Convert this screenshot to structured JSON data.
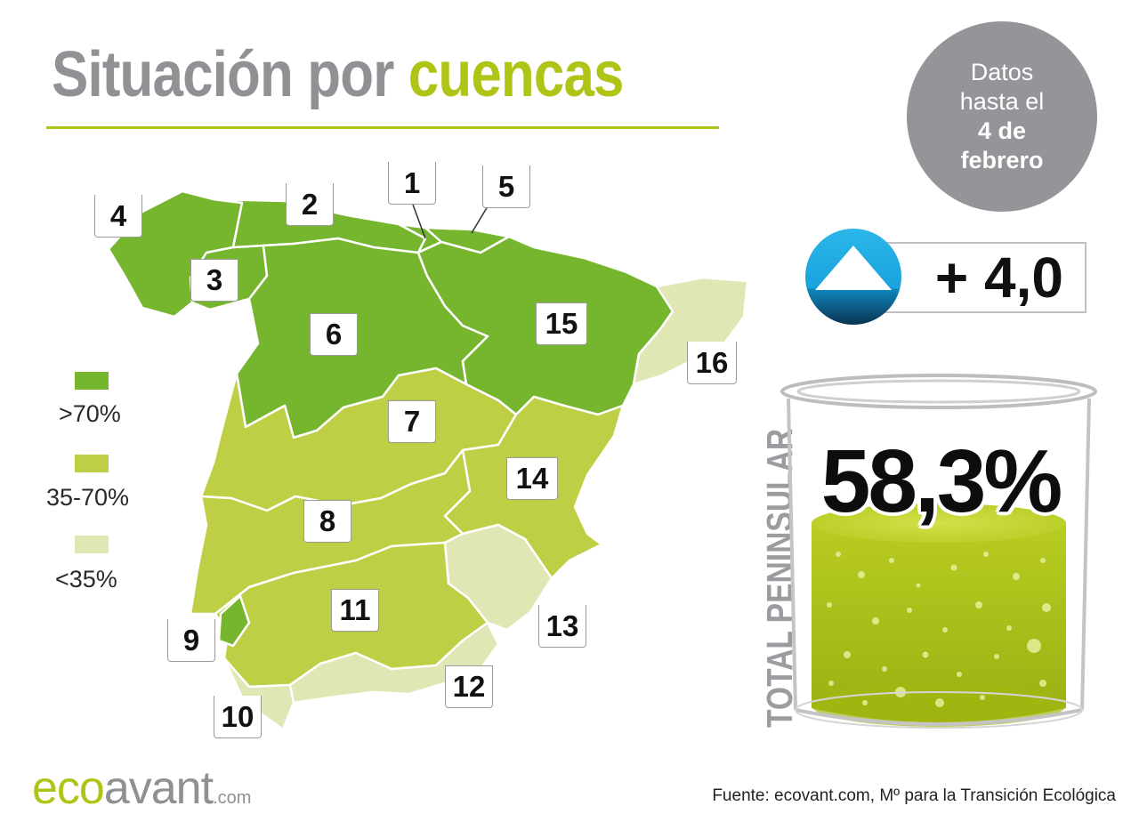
{
  "title": {
    "part1": "Situación por",
    "part2": "cuencas"
  },
  "date_note": {
    "line1": "Datos",
    "line2": "hasta el",
    "line3": "4 de",
    "line4": "febrero"
  },
  "weekly_change": {
    "icon": "up-triangle-icon",
    "value": "+ 4,0"
  },
  "total": {
    "label": "TOTAL PENINSULAR",
    "value": "58,3%",
    "fill_fraction": 0.583
  },
  "legend": [
    {
      "label": ">70%",
      "color": "#76b52e"
    },
    {
      "label": "35-70%",
      "color": "#bfcf45"
    },
    {
      "label": "<35%",
      "color": "#e0e7b4"
    }
  ],
  "basins": [
    {
      "id": "1",
      "level": ">70%"
    },
    {
      "id": "2",
      "level": ">70%"
    },
    {
      "id": "3",
      "level": ">70%"
    },
    {
      "id": "4",
      "level": ">70%"
    },
    {
      "id": "5",
      "level": ">70%"
    },
    {
      "id": "6",
      "level": ">70%"
    },
    {
      "id": "7",
      "level": "35-70%"
    },
    {
      "id": "8",
      "level": "35-70%"
    },
    {
      "id": "9",
      "level": ">70%"
    },
    {
      "id": "10",
      "level": "<35%"
    },
    {
      "id": "11",
      "level": "35-70%"
    },
    {
      "id": "12",
      "level": "<35%"
    },
    {
      "id": "13",
      "level": "<35%"
    },
    {
      "id": "14",
      "level": "35-70%"
    },
    {
      "id": "15",
      "level": ">70%"
    },
    {
      "id": "16",
      "level": "<35%"
    }
  ],
  "footer": {
    "logo_eco": "eco",
    "logo_avant": "avant",
    "logo_com": ".com",
    "source": "Fuente: ecovant.com, Mº para la Transición Ecológica"
  }
}
